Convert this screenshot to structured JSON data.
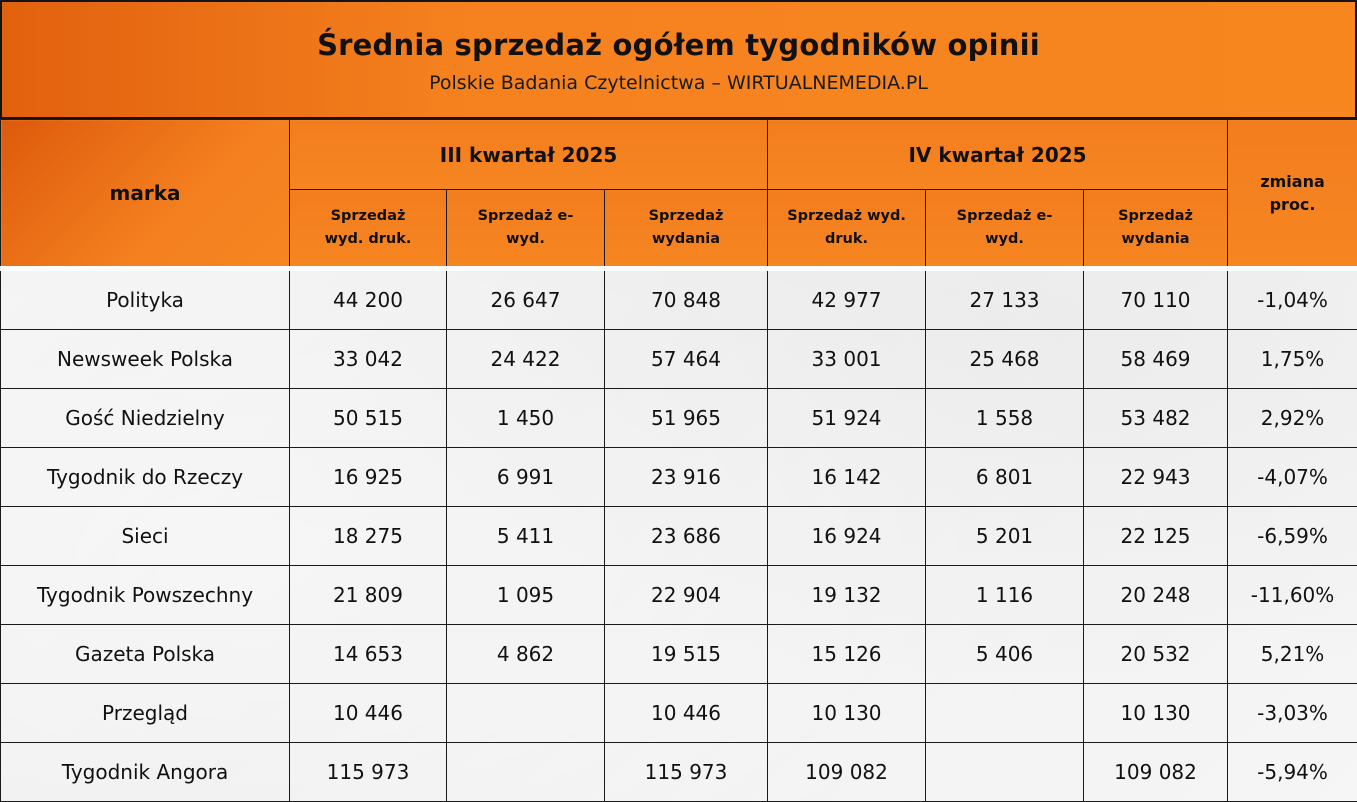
{
  "header": {
    "title": "Średnia sprzedaż ogółem tygodników opinii",
    "subtitle": "Polskie Badania Czytelnictwa – WIRTUALNEMEDIA.PL"
  },
  "chart_data": {
    "type": "table",
    "brand_header": "marka",
    "quarters": [
      "III kwartał 2025",
      "IV kwartał 2025"
    ],
    "sub_columns": [
      [
        "Sprzedaż",
        "wyd. druk."
      ],
      [
        "Sprzedaż e-",
        "wyd."
      ],
      [
        "Sprzedaż",
        "wydania"
      ],
      [
        "Sprzedaż wyd.",
        "druk."
      ],
      [
        "Sprzedaż e-",
        "wyd."
      ],
      [
        "Sprzedaż",
        "wydania"
      ]
    ],
    "change_header": [
      "zmiana",
      "proc."
    ],
    "rows": [
      {
        "brand": "Polityka",
        "values": [
          "44 200",
          "26 647",
          "70 848",
          "42 977",
          "27 133",
          "70 110"
        ],
        "change": "-1,04%"
      },
      {
        "brand": "Newsweek Polska",
        "values": [
          "33 042",
          "24 422",
          "57 464",
          "33 001",
          "25 468",
          "58 469"
        ],
        "change": "1,75%"
      },
      {
        "brand": "Gość Niedzielny",
        "values": [
          "50 515",
          "1 450",
          "51 965",
          "51 924",
          "1 558",
          "53 482"
        ],
        "change": "2,92%"
      },
      {
        "brand": "Tygodnik do Rzeczy",
        "values": [
          "16 925",
          "6 991",
          "23 916",
          "16 142",
          "6 801",
          "22 943"
        ],
        "change": "-4,07%"
      },
      {
        "brand": "Sieci",
        "values": [
          "18 275",
          "5 411",
          "23 686",
          "16 924",
          "5 201",
          "22 125"
        ],
        "change": "-6,59%"
      },
      {
        "brand": "Tygodnik Powszechny",
        "values": [
          "21 809",
          "1 095",
          "22 904",
          "19 132",
          "1 116",
          "20 248"
        ],
        "change": "-11,60%"
      },
      {
        "brand": "Gazeta Polska",
        "values": [
          "14 653",
          "4 862",
          "19 515",
          "15 126",
          "5 406",
          "20 532"
        ],
        "change": "5,21%"
      },
      {
        "brand": "Przegląd",
        "values": [
          "10 446",
          "",
          "10 446",
          "10 130",
          "",
          "10 130"
        ],
        "change": "-3,03%"
      },
      {
        "brand": "Tygodnik Angora",
        "values": [
          "115 973",
          "",
          "115 973",
          "109 082",
          "",
          "109 082"
        ],
        "change": "-5,94%"
      }
    ]
  }
}
